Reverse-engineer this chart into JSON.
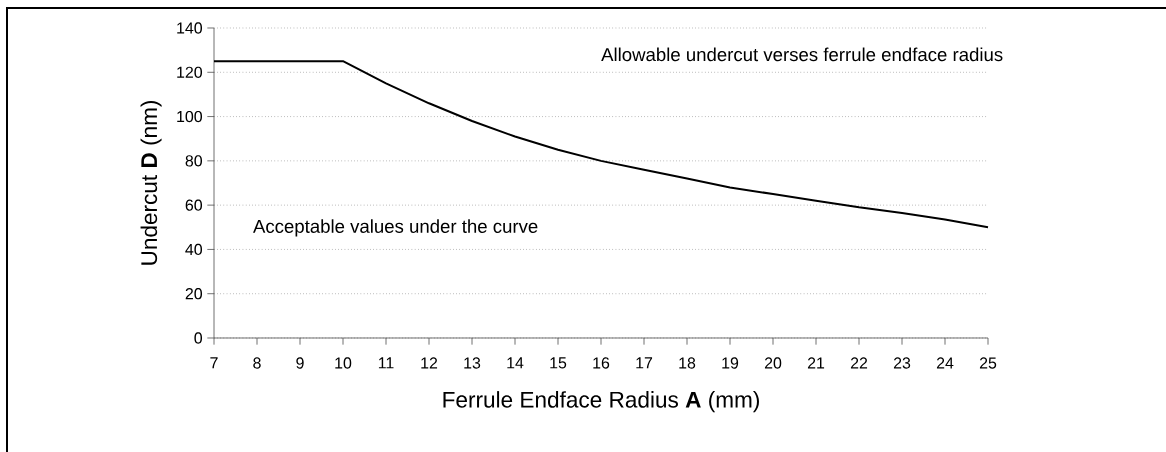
{
  "chart_data": {
    "type": "line",
    "xlabel": "Ferrule Endface Radius **A** (mm)",
    "ylabel": "Undercut **D** (nm)",
    "annotations": [
      "Allowable undercut verses ferrule endface radius",
      "Acceptable values under the curve"
    ],
    "x": [
      7,
      8,
      9,
      10,
      11,
      12,
      13,
      14,
      15,
      16,
      17,
      18,
      19,
      20,
      21,
      22,
      23,
      24,
      25
    ],
    "series": [
      {
        "color": "#000000",
        "values": [
          125,
          125,
          125,
          125,
          115,
          106,
          98,
          91,
          85,
          80,
          76,
          72,
          68,
          65,
          62,
          59,
          56.5,
          53.5,
          50
        ]
      }
    ],
    "xlim": [
      7,
      25
    ],
    "ylim": [
      0,
      140
    ],
    "xticks": [
      7,
      8,
      9,
      10,
      11,
      12,
      13,
      14,
      15,
      16,
      17,
      18,
      19,
      20,
      21,
      22,
      23,
      24,
      25
    ],
    "yticks": [
      0,
      20,
      40,
      60,
      80,
      100,
      120,
      140
    ],
    "grid": "y",
    "marker": "none",
    "line_style": "solid"
  }
}
